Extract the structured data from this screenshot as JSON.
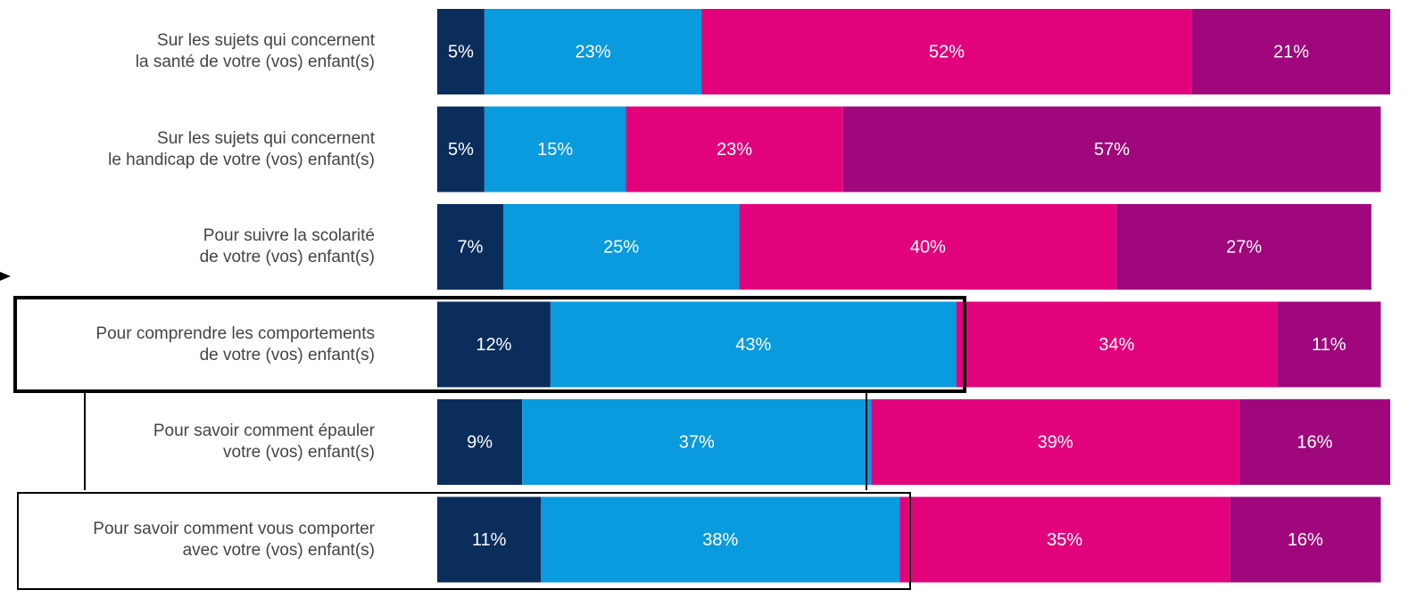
{
  "chart_data": {
    "type": "stacked-barh",
    "categories": [
      "Sur les sujets qui concernent\nla santé de votre (vos) enfant(s)",
      "Sur les sujets qui concernent\nle handicap de votre (vos) enfant(s)",
      "Pour suivre la scolarité\nde votre (vos) enfant(s)",
      "Pour comprendre les comportements\nde votre (vos) enfant(s)",
      "Pour savoir comment épauler\nvotre (vos) enfant(s)",
      "Pour savoir comment vous comporter\navec votre (vos) enfant(s)"
    ],
    "series": [
      {
        "color": "#0b2d5c",
        "values": [
          5,
          5,
          7,
          12,
          9,
          11
        ],
        "value_labels": [
          "5%",
          "5%",
          "7%",
          "12%",
          "9%",
          "11%"
        ]
      },
      {
        "color": "#0a9ade",
        "values": [
          23,
          15,
          25,
          43,
          37,
          38
        ],
        "value_labels": [
          "23%",
          "15%",
          "25%",
          "43%",
          "37%",
          "38%"
        ]
      },
      {
        "color": "#e2037c",
        "values": [
          52,
          23,
          40,
          34,
          39,
          35
        ],
        "value_labels": [
          "52%",
          "23%",
          "40%",
          "34%",
          "39%",
          "35%"
        ]
      },
      {
        "color": "#a0077c",
        "values": [
          21,
          57,
          27,
          11,
          16,
          16
        ],
        "value_labels": [
          "21%",
          "57%",
          "27%",
          "11%",
          "16%",
          "16%"
        ]
      }
    ],
    "xlim": [
      0,
      101
    ]
  }
}
